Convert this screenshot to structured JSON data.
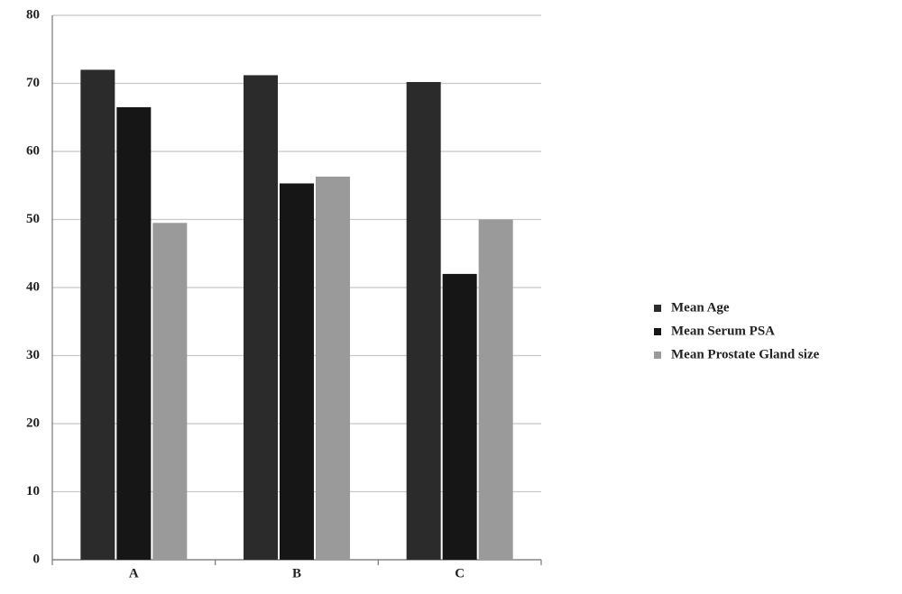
{
  "chart_data": {
    "type": "bar",
    "categories": [
      "A",
      "B",
      "C"
    ],
    "series": [
      {
        "name": "Mean Age",
        "color": "#2b2b2b",
        "values": [
          72,
          71.2,
          70.2
        ]
      },
      {
        "name": "Mean Serum PSA",
        "color": "#161616",
        "values": [
          66.5,
          55.3,
          42
        ]
      },
      {
        "name": "Mean Prostate Gland size",
        "color": "#9a9a9a",
        "values": [
          49.5,
          56.3,
          50
        ]
      }
    ],
    "ylim": [
      0,
      80
    ],
    "yticks": [
      0,
      10,
      20,
      30,
      40,
      50,
      60,
      70,
      80
    ],
    "grid": true,
    "legend": "right"
  }
}
